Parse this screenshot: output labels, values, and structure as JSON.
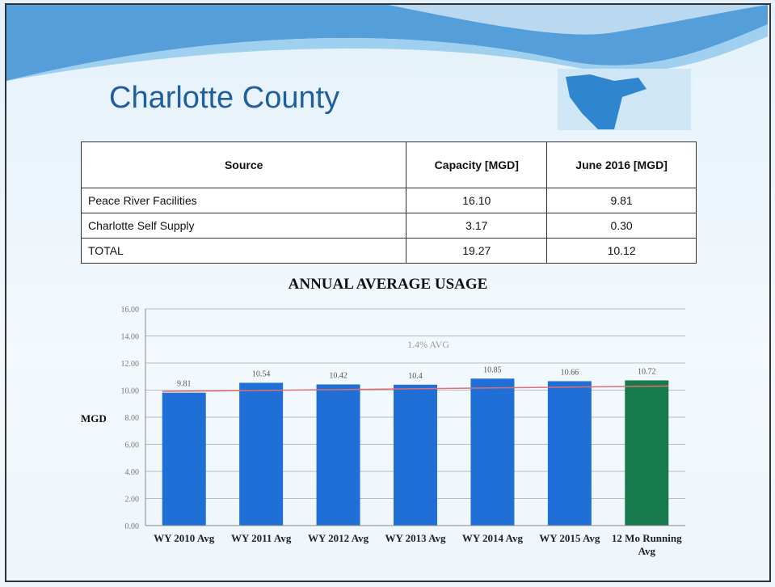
{
  "header": {
    "title": "Charlotte County"
  },
  "table": {
    "columns": [
      "Source",
      "Capacity [MGD]",
      "June 2016 [MGD]"
    ],
    "rows": [
      [
        "Peace River Facilities",
        "16.10",
        "9.81"
      ],
      [
        "Charlotte Self Supply",
        "3.17",
        "0.30"
      ],
      [
        "TOTAL",
        "19.27",
        "10.12"
      ]
    ]
  },
  "chart_data": {
    "type": "bar",
    "title": "ANNUAL AVERAGE USAGE",
    "y_label": "MGD",
    "categories": [
      "WY 2010 Avg",
      "WY 2011 Avg",
      "WY 2012 Avg",
      "WY 2013 Avg",
      "WY 2014 Avg",
      "WY 2015 Avg",
      "12 Mo Running Avg"
    ],
    "values": [
      9.81,
      10.54,
      10.42,
      10.4,
      10.85,
      10.66,
      10.72
    ],
    "colors": [
      "#1f6fd6",
      "#1f6fd6",
      "#1f6fd6",
      "#1f6fd6",
      "#1f6fd6",
      "#1f6fd6",
      "#177a4c"
    ],
    "ylim": [
      0,
      16
    ],
    "yticks": [
      {
        "value": 0,
        "label": "0.00"
      },
      {
        "value": 2,
        "label": "2.00"
      },
      {
        "value": 4,
        "label": "4.00"
      },
      {
        "value": 6,
        "label": "6.00"
      },
      {
        "value": 8,
        "label": "8.00"
      },
      {
        "value": 10,
        "label": "10.00"
      },
      {
        "value": 12,
        "label": "12.00"
      },
      {
        "value": 14,
        "label": "14.00"
      },
      {
        "value": 16,
        "label": "16.00"
      }
    ],
    "grid": true,
    "trendline": {
      "values": [
        9.9,
        10.3
      ],
      "color": "#e07070"
    },
    "annotation": "1.4% AVG"
  }
}
